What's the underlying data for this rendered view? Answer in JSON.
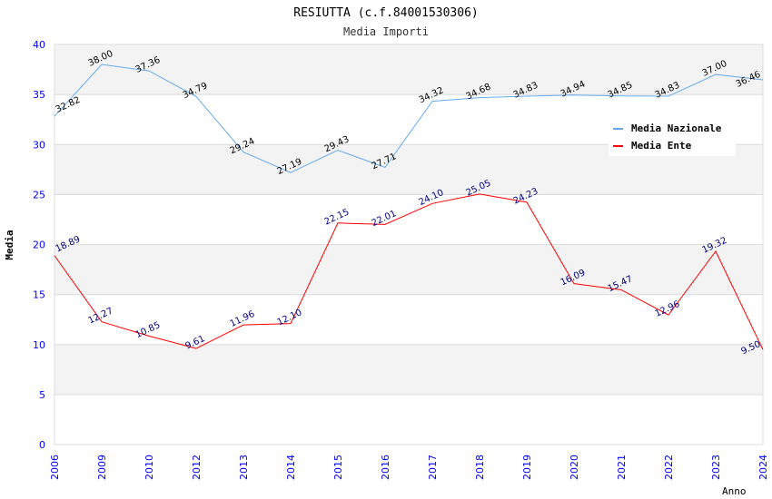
{
  "chart_data": {
    "type": "line",
    "title": "RESIUTTA (c.f.84001530306)",
    "subtitle": "Media Importi",
    "xlabel": "Anno",
    "ylabel": "Media",
    "ylim": [
      0,
      40
    ],
    "yticks": [
      0,
      5,
      10,
      15,
      20,
      25,
      30,
      35,
      40
    ],
    "grid": true,
    "legend_position": "top-right",
    "categories": [
      "2006",
      "2009",
      "2010",
      "2012",
      "2013",
      "2014",
      "2015",
      "2016",
      "2017",
      "2018",
      "2019",
      "2020",
      "2021",
      "2022",
      "2023",
      "2024"
    ],
    "series": [
      {
        "name": "Media Nazionale",
        "color": "#66aaee",
        "label_color": "#000000",
        "values": [
          32.82,
          38.0,
          37.36,
          34.79,
          29.24,
          27.19,
          29.43,
          27.71,
          34.32,
          34.68,
          34.83,
          34.94,
          34.85,
          34.83,
          37.0,
          36.46
        ]
      },
      {
        "name": "Media Ente",
        "color": "#ff0000",
        "label_color": "#000080",
        "values": [
          18.89,
          12.27,
          10.85,
          9.61,
          11.96,
          12.1,
          22.15,
          22.01,
          24.1,
          25.05,
          24.23,
          16.09,
          15.47,
          12.96,
          19.32,
          9.5
        ]
      }
    ]
  }
}
